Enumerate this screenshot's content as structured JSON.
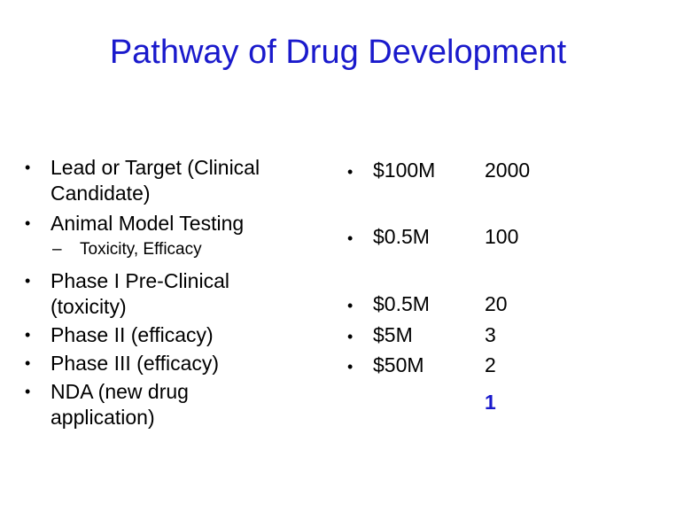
{
  "slide": {
    "title": "Pathway of Drug Development"
  },
  "stages": {
    "bullet_char": "•",
    "dash_char": "–",
    "items": [
      {
        "line1": "Lead or Target (Clinical",
        "line2": "Candidate)"
      },
      {
        "line1": "Animal Model Testing"
      },
      {
        "sub": "Toxicity, Efficacy"
      },
      {
        "line1": "Phase I Pre-Clinical",
        "line2": "(toxicity)"
      },
      {
        "line1": "Phase II (efficacy)"
      },
      {
        "line1": "Phase III (efficacy)"
      },
      {
        "line1": "NDA (new drug",
        "line2": "application)"
      }
    ]
  },
  "costs": {
    "items": [
      "$100M",
      "$0.5M",
      "$0.5M",
      "$5M",
      "$50M"
    ]
  },
  "counts": {
    "items": [
      "2000",
      "100",
      "20",
      "3",
      "2",
      "1"
    ],
    "highlight_color": "#1a1acc"
  }
}
